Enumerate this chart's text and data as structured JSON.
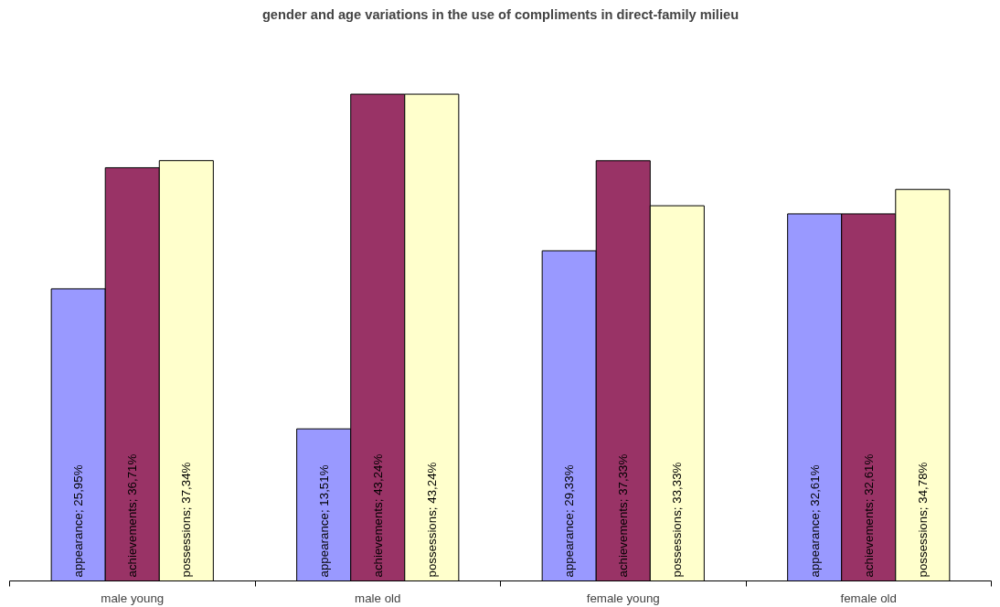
{
  "chart_data": {
    "type": "bar",
    "title": "gender and age variations in the use of compliments in direct-family milieu",
    "categories": [
      "male young",
      "male old",
      "female young",
      "female old"
    ],
    "series": [
      {
        "color": "#9999ff",
        "values": [
          25.95,
          13.51,
          29.33,
          32.61
        ],
        "value_labels": [
          "appearance; 25,95%",
          "appearance; 13,51%",
          "appearance; 29,33%",
          "appearance; 32,61%"
        ]
      },
      {
        "color": "#993366",
        "values": [
          36.71,
          43.24,
          37.33,
          32.61
        ],
        "value_labels": [
          "achievements; 36,71%",
          "achievements; 43,24%",
          "achievements; 37,33%",
          "achievements; 32,61%"
        ]
      },
      {
        "color": "#ffffcc",
        "values": [
          37.34,
          43.24,
          33.33,
          34.78
        ],
        "value_labels": [
          "possessions; 37,34%",
          "possessions; 43,24%",
          "possessions; 33,33%",
          "possessions; 34,78%"
        ]
      }
    ],
    "grid": false
  }
}
